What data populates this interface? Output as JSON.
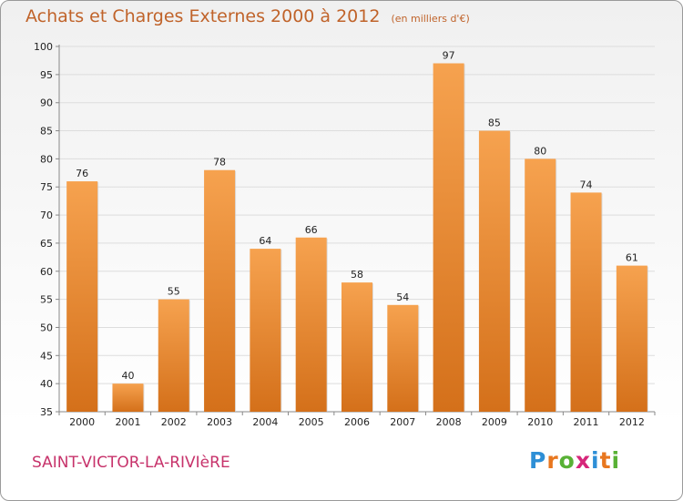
{
  "header": {
    "title": "Achats et Charges Externes 2000 à 2012",
    "subtitle": "(en milliers d'€)"
  },
  "footer": {
    "commune": "SAINT-VICTOR-LA-RIVIèRE"
  },
  "logo": {
    "letters": [
      "P",
      "r",
      "o",
      "x",
      "i",
      "t",
      "i"
    ],
    "colors": [
      "#2e8fd6",
      "#e8771f",
      "#58b135",
      "#d6267a",
      "#2e8fd6",
      "#e8771f",
      "#58b135"
    ]
  },
  "chart_data": {
    "type": "bar",
    "title": "Achats et Charges Externes 2000 à 2012",
    "subtitle": "(en milliers d'€)",
    "categories": [
      "2000",
      "2001",
      "2002",
      "2003",
      "2004",
      "2005",
      "2006",
      "2007",
      "2008",
      "2009",
      "2010",
      "2011",
      "2012"
    ],
    "values": [
      76,
      40,
      55,
      78,
      64,
      66,
      58,
      54,
      97,
      85,
      80,
      74,
      61
    ],
    "xlabel": "",
    "ylabel": "",
    "ylim": [
      35,
      100
    ],
    "yticks": [
      35,
      40,
      45,
      50,
      55,
      60,
      65,
      70,
      75,
      80,
      85,
      90,
      95,
      100
    ],
    "grid": true,
    "legend": "none",
    "colors": {
      "bar_top": "#f6a24f",
      "bar_bottom": "#d4701a",
      "grid": "#dddddd"
    }
  }
}
